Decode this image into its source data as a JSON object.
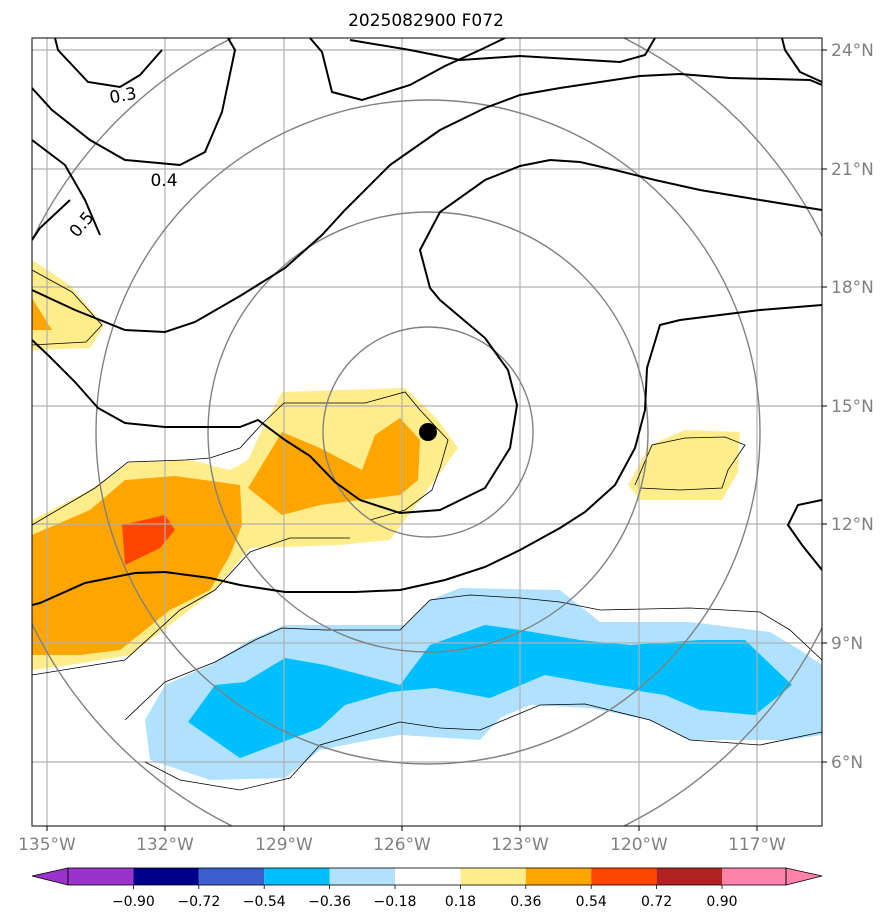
{
  "title": "2025082900 F072",
  "map": {
    "lon_ticks": [
      "135°W",
      "132°W",
      "129°W",
      "126°W",
      "123°W",
      "120°W",
      "117°W"
    ],
    "lat_ticks": [
      "24°N",
      "21°N",
      "18°N",
      "15°N",
      "12°N",
      "9°N",
      "6°N"
    ],
    "contour_labels": [
      "0.3",
      "0.4",
      "0.5"
    ],
    "storm_center": {
      "lon": -125.1,
      "lat": 14.4
    },
    "colors": {
      "grid": "#b0b0b0",
      "contour": "#000000",
      "range_rings": "#808080",
      "storm_marker": "#000000"
    }
  },
  "colorbar": {
    "labels": [
      "−0.90",
      "−0.72",
      "−0.54",
      "−0.36",
      "−0.18",
      "0.18",
      "0.36",
      "0.54",
      "0.72",
      "0.90"
    ],
    "colors": [
      "#9a32cd",
      "#00008b",
      "#3a5fcd",
      "#00bfff",
      "#b0e2ff",
      "#ffffff",
      "#ffec8b",
      "#ffa500",
      "#ff4500",
      "#b22222",
      "#ff82ab"
    ]
  }
}
